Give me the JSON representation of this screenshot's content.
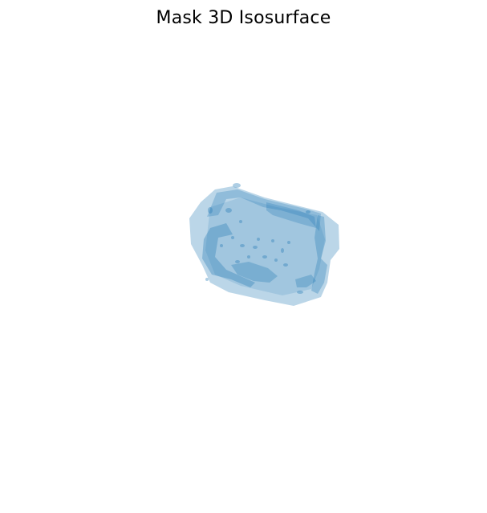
{
  "chart_data": {
    "type": "isosurface",
    "title": "Mask 3D Isosurface",
    "axes_visible": false,
    "grid": false,
    "legend": "none",
    "surface_color": "#1f77b4",
    "surface_alpha": 0.3
  }
}
